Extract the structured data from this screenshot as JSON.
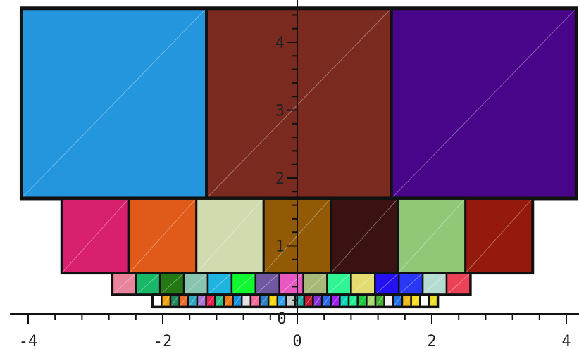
{
  "chart_data": {
    "type": "other",
    "description_kind": "nested rectangle rows of colored squares",
    "xlim": [
      -4.25,
      4.25
    ],
    "ylim": [
      0,
      4.62
    ],
    "x_ticks": [
      -4,
      -2,
      0,
      2,
      4
    ],
    "y_ticks": [
      1,
      2,
      3,
      4
    ],
    "x_tick_labels": [
      "-4",
      "-2",
      "0",
      "2",
      "4"
    ],
    "y_tick_labels": [
      "1",
      "2",
      "3",
      "4"
    ],
    "origin_label": "0",
    "rows": [
      {
        "y0": 1.7,
        "y1": 4.5,
        "x0": -4.1,
        "width": 2.75,
        "colors": [
          "#2496dd",
          "#7b2a20",
          "#48058a"
        ]
      },
      {
        "y0": 0.6,
        "y1": 1.7,
        "x0": -3.5,
        "width": 1.0,
        "colors": [
          "#d8206e",
          "#e05a1a",
          "#d0dcb0",
          "#925a05",
          "#3a1212",
          "#90c878",
          "#961a0c"
        ]
      },
      {
        "y0": 0.28,
        "y1": 0.6,
        "x0": -2.75,
        "width": 0.355,
        "colors": [
          "#e8849c",
          "#18b868",
          "#247814",
          "#88c4b0",
          "#20b4e0",
          "#10f830",
          "#7058a0",
          "#e858c0",
          "#a8b878",
          "#30f494",
          "#e4dc70",
          "#2410f0",
          "#2838f4",
          "#b4dcd0",
          "#ec4258"
        ]
      },
      {
        "y0": 0.1,
        "y1": 0.28,
        "x0": -2.15,
        "width": 0.1325,
        "colors": [
          "#ffffff",
          "#f0a010",
          "#208858",
          "#f06828",
          "#30a8c0",
          "#a878d8",
          "#e8204c",
          "#28c080",
          "#f07818",
          "#1890e0",
          "#e0e0e0",
          "#f86898",
          "#2880c8",
          "#f8d810",
          "#30a0f0",
          "#c8c8c8",
          "#20b0a8",
          "#c01830",
          "#8830d8",
          "#2868f0",
          "#a020f0",
          "#08d8b8",
          "#20f090",
          "#18c840",
          "#a8d870",
          "#48b030",
          "#f8f0f0",
          "#2070e8",
          "#f0b818",
          "#f8e020",
          "#ffffff",
          "#e8e020"
        ]
      }
    ]
  }
}
